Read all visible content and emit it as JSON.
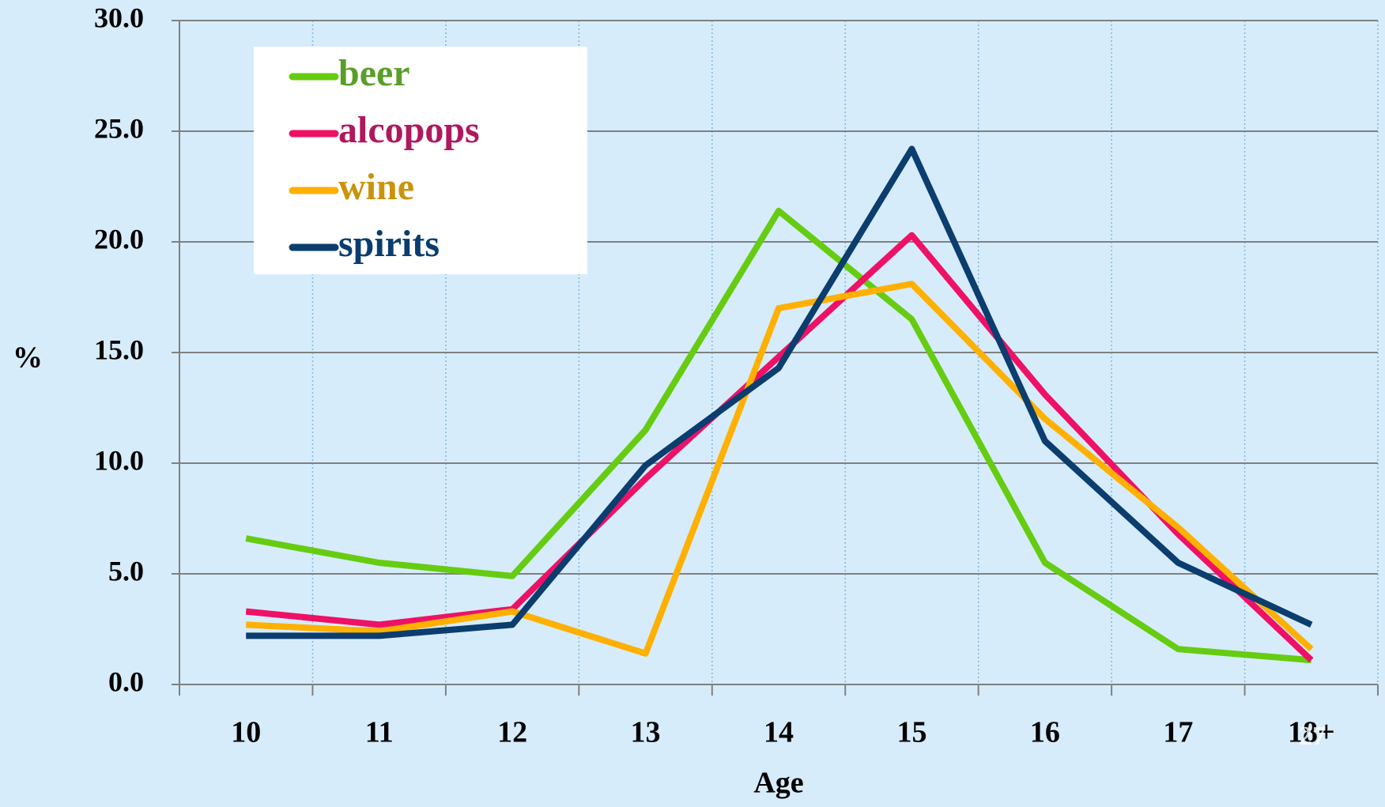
{
  "chart_data": {
    "type": "line",
    "x_label": "Age",
    "y_label": "%",
    "categories": [
      "10",
      "11",
      "12",
      "13",
      "14",
      "15",
      "16",
      "17",
      "18+"
    ],
    "series": [
      {
        "name": "beer",
        "color": "#66cc11",
        "label_color": "#5a9e2a",
        "values": [
          6.6,
          5.5,
          4.9,
          11.5,
          21.4,
          16.5,
          5.5,
          1.6,
          1.1
        ]
      },
      {
        "name": "alcopops",
        "color": "#ee1166",
        "label_color": "#b0185e",
        "values": [
          3.3,
          2.7,
          3.4,
          9.3,
          14.8,
          20.3,
          13.1,
          6.8,
          1.1
        ]
      },
      {
        "name": "wine",
        "color": "#ffb000",
        "label_color": "#c8940a",
        "values": [
          2.7,
          2.4,
          3.3,
          1.4,
          17.0,
          18.1,
          12.0,
          7.1,
          1.6
        ]
      },
      {
        "name": "spirits",
        "color": "#0b3d6e",
        "label_color": "#0a3d6e",
        "values": [
          2.2,
          2.2,
          2.7,
          9.9,
          14.3,
          24.2,
          11.0,
          5.5,
          2.7
        ]
      }
    ],
    "ylim": [
      0,
      30
    ],
    "yticks": [
      {
        "value": 0,
        "label": "0.0"
      },
      {
        "value": 5,
        "label": "5.0"
      },
      {
        "value": 10,
        "label": "10.0"
      },
      {
        "value": 15,
        "label": "15.0"
      },
      {
        "value": 20,
        "label": "20.0"
      },
      {
        "value": 25,
        "label": "25.0"
      },
      {
        "value": 30,
        "label": "30.0"
      }
    ],
    "grid": true,
    "legend": "upper left",
    "slide_number": "27"
  }
}
